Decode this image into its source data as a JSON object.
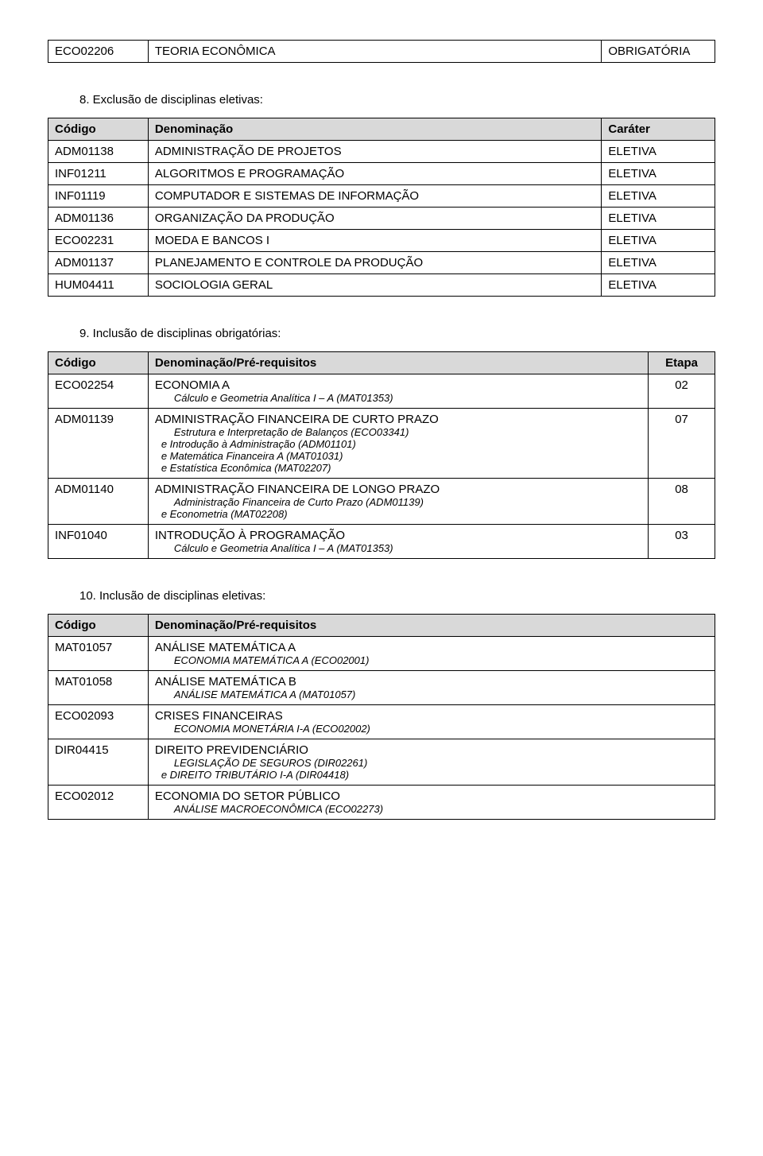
{
  "topTable": {
    "rows": [
      [
        "ECO02206",
        "TEORIA ECONÔMICA",
        "OBRIGATÓRIA"
      ]
    ]
  },
  "section8": {
    "heading": "8.    Exclusão de disciplinas eletivas:",
    "headers": [
      "Código",
      "Denominação",
      "Caráter"
    ],
    "rows": [
      [
        "ADM01138",
        "ADMINISTRAÇÃO DE PROJETOS",
        "ELETIVA"
      ],
      [
        "INF01211",
        "ALGORITMOS E PROGRAMAÇÃO",
        "ELETIVA"
      ],
      [
        "INF01119",
        "COMPUTADOR E SISTEMAS DE INFORMAÇÃO",
        "ELETIVA"
      ],
      [
        "ADM01136",
        "ORGANIZAÇÃO DA PRODUÇÃO",
        "ELETIVA"
      ],
      [
        "ECO02231",
        "MOEDA E BANCOS I",
        "ELETIVA"
      ],
      [
        "ADM01137",
        "PLANEJAMENTO E CONTROLE DA PRODUÇÃO",
        "ELETIVA"
      ],
      [
        "HUM04411",
        "SOCIOLOGIA GERAL",
        "ELETIVA"
      ]
    ]
  },
  "section9": {
    "heading": "9.    Inclusão de disciplinas obrigatórias:",
    "headers": [
      "Código",
      "Denominação/Pré-requisitos",
      "Etapa"
    ],
    "rows": [
      {
        "code": "ECO02254",
        "name": "ECONOMIA A",
        "prereqs": [
          "Cálculo e Geometria Analítica I – A (MAT01353)"
        ],
        "etapa": "02"
      },
      {
        "code": "ADM01139",
        "name": "ADMINISTRAÇÃO FINANCEIRA DE CURTO PRAZO",
        "prereqs": [
          "Estrutura e Interpretação de Balanços (ECO03341)",
          "e   Introdução à Administração (ADM01101)",
          "e   Matemática Financeira A (MAT01031)",
          "e   Estatística Econômica (MAT02207)"
        ],
        "etapa": "07"
      },
      {
        "code": "ADM01140",
        "name": "ADMINISTRAÇÃO FINANCEIRA DE LONGO PRAZO",
        "prereqs": [
          "Administração Financeira de Curto Prazo (ADM01139)",
          "e   Econometria (MAT02208)"
        ],
        "etapa": "08"
      },
      {
        "code": "INF01040",
        "name": "INTRODUÇÃO À PROGRAMAÇÃO",
        "prereqs": [
          "Cálculo e Geometria Analítica I – A (MAT01353)"
        ],
        "etapa": "03"
      }
    ]
  },
  "section10": {
    "heading": "10.    Inclusão de disciplinas eletivas:",
    "headers": [
      "Código",
      "Denominação/Pré-requisitos"
    ],
    "rows": [
      {
        "code": "MAT01057",
        "name": "ANÁLISE MATEMÁTICA A",
        "prereqs": [
          "ECONOMIA MATEMÁTICA A (ECO02001)"
        ]
      },
      {
        "code": "MAT01058",
        "name": "ANÁLISE MATEMÁTICA B",
        "prereqs": [
          "ANÁLISE MATEMÁTICA A (MAT01057)"
        ]
      },
      {
        "code": "ECO02093",
        "name": "CRISES FINANCEIRAS",
        "prereqs": [
          "ECONOMIA MONETÁRIA I-A (ECO02002)"
        ]
      },
      {
        "code": "DIR04415",
        "name": "DIREITO PREVIDENCIÁRIO",
        "prereqs": [
          "LEGISLAÇÃO DE SEGUROS (DIR02261)",
          "e   DIREITO TRIBUTÁRIO I-A (DIR04418)"
        ]
      },
      {
        "code": "ECO02012",
        "name": "ECONOMIA DO SETOR PÚBLICO",
        "prereqs": [
          "ANÁLISE MACROECONÔMICA (ECO02273)"
        ]
      }
    ]
  }
}
